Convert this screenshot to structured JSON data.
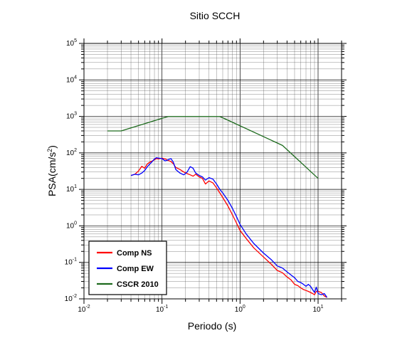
{
  "chart_data": {
    "type": "line",
    "title": "Sitio SCCH",
    "xlabel": "Periodo (s)",
    "ylabel": {
      "base": "PSA(cm/s",
      "exp": "2",
      "suffix": ")"
    },
    "xscale": "log",
    "yscale": "log",
    "xlim": [
      0.01,
      20
    ],
    "ylim": [
      0.01,
      100000
    ],
    "grid": true,
    "legend_position": "bottom-left",
    "x_ticks": [
      {
        "base": "10",
        "exp": "-2",
        "value": 0.01
      },
      {
        "base": "10",
        "exp": "-1",
        "value": 0.1
      },
      {
        "base": "10",
        "exp": "0",
        "value": 1
      },
      {
        "base": "10",
        "exp": "1",
        "value": 10
      }
    ],
    "y_ticks": [
      {
        "base": "10",
        "exp": "-2",
        "value": 0.01
      },
      {
        "base": "10",
        "exp": "-1",
        "value": 0.1
      },
      {
        "base": "10",
        "exp": "0",
        "value": 1
      },
      {
        "base": "10",
        "exp": "1",
        "value": 10
      },
      {
        "base": "10",
        "exp": "2",
        "value": 100
      },
      {
        "base": "10",
        "exp": "3",
        "value": 1000
      },
      {
        "base": "10",
        "exp": "4",
        "value": 10000
      },
      {
        "base": "10",
        "exp": "5",
        "value": 100000
      }
    ],
    "series": [
      {
        "name": "Comp NS",
        "color": "#ff0000",
        "x": [
          0.04,
          0.045,
          0.05,
          0.055,
          0.06,
          0.065,
          0.07,
          0.075,
          0.08,
          0.085,
          0.09,
          0.1,
          0.11,
          0.12,
          0.13,
          0.14,
          0.15,
          0.17,
          0.19,
          0.21,
          0.23,
          0.25,
          0.27,
          0.3,
          0.33,
          0.36,
          0.4,
          0.45,
          0.5,
          0.55,
          0.6,
          0.7,
          0.8,
          0.9,
          1.0,
          1.2,
          1.5,
          2.0,
          2.5,
          3.0,
          3.5,
          4.0,
          4.5,
          5.0,
          5.5,
          6.0,
          6.5,
          7.0,
          7.5,
          8.0,
          8.5,
          9.0,
          9.5,
          10,
          11,
          12,
          13
        ],
        "y": [
          24,
          26,
          32,
          43,
          38,
          50,
          56,
          60,
          65,
          70,
          68,
          72,
          68,
          62,
          58,
          50,
          40,
          35,
          30,
          27,
          25,
          23,
          26,
          22,
          20,
          14,
          17,
          15,
          11,
          8,
          6,
          3.5,
          2.0,
          1.2,
          0.75,
          0.45,
          0.25,
          0.14,
          0.09,
          0.06,
          0.052,
          0.04,
          0.033,
          0.025,
          0.023,
          0.02,
          0.018,
          0.017,
          0.016,
          0.015,
          0.014,
          0.013,
          0.016,
          0.016,
          0.015,
          0.012,
          0.011
        ]
      },
      {
        "name": "Comp EW",
        "color": "#0000ff",
        "x": [
          0.04,
          0.045,
          0.05,
          0.055,
          0.06,
          0.065,
          0.07,
          0.075,
          0.08,
          0.085,
          0.09,
          0.1,
          0.11,
          0.12,
          0.13,
          0.14,
          0.15,
          0.17,
          0.19,
          0.21,
          0.23,
          0.25,
          0.27,
          0.3,
          0.33,
          0.36,
          0.4,
          0.45,
          0.5,
          0.55,
          0.6,
          0.7,
          0.8,
          0.9,
          1.0,
          1.2,
          1.5,
          2.0,
          2.5,
          3.0,
          3.5,
          4.0,
          4.5,
          5.0,
          5.5,
          6.0,
          6.5,
          7.0,
          7.5,
          8.0,
          8.5,
          9.0,
          9.5,
          10,
          11,
          12,
          13
        ],
        "y": [
          24,
          26,
          25,
          28,
          33,
          42,
          50,
          58,
          68,
          74,
          72,
          70,
          60,
          65,
          70,
          55,
          35,
          28,
          25,
          30,
          42,
          38,
          28,
          24,
          22,
          18,
          21,
          19,
          14,
          10,
          8,
          5,
          3,
          1.8,
          1.1,
          0.6,
          0.33,
          0.18,
          0.12,
          0.08,
          0.07,
          0.055,
          0.045,
          0.038,
          0.03,
          0.028,
          0.025,
          0.022,
          0.025,
          0.022,
          0.018,
          0.015,
          0.021,
          0.014,
          0.013,
          0.014,
          0.011
        ]
      },
      {
        "name": "CSCR 2010",
        "color": "#1e6b1e",
        "x": [
          0.02,
          0.03,
          0.12,
          0.55,
          3.5,
          10
        ],
        "y": [
          400,
          400,
          1000,
          1000,
          160,
          20
        ]
      }
    ]
  }
}
